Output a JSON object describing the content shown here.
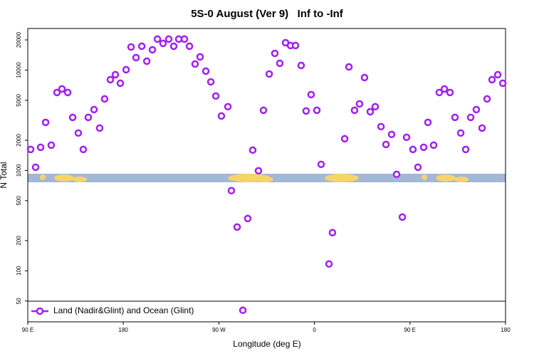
{
  "chart_data": {
    "type": "scatter",
    "title": "5S-0 August (Ver 9)   Inf to -Inf",
    "xlabel": "Longitude (deg E)",
    "ylabel": "N Total",
    "xlim": [
      90,
      540
    ],
    "xticks": [
      {
        "value": 90,
        "label": "90 E"
      },
      180,
      {
        "value": 270,
        "label": "90 W"
      },
      {
        "value": 360,
        "label": "0"
      },
      {
        "value": 450,
        "label": "90 E"
      },
      {
        "value": 540,
        "label": "180"
      }
    ],
    "ylim": [
      31,
      26000
    ],
    "yticks": [
      50,
      100,
      200,
      500,
      1000,
      2000,
      5000,
      10000,
      20000
    ],
    "log_y": true,
    "legend": "lower left",
    "series": [
      {
        "name": "Land (Nadir&Glint) and Ocean (Glint)",
        "color": "#a020f0",
        "x": [
          92.7,
          97.4,
          102.1,
          106.8,
          112.1,
          117.5,
          122.2,
          127.6,
          132.3,
          137.6,
          142.3,
          147.0,
          152.4,
          157.7,
          162.4,
          167.8,
          172.5,
          177.2,
          182.6,
          187.3,
          192.0,
          197.4,
          202.1,
          207.4,
          212.1,
          217.4,
          222.8,
          227.5,
          232.2,
          237.6,
          242.3,
          247.6,
          252.3,
          257.7,
          262.4,
          267.1,
          272.4,
          278.5,
          281.8,
          287.2,
          292.6,
          297.2,
          301.9,
          307.3,
          312.0,
          317.4,
          322.7,
          327.4,
          332.8,
          337.5,
          342.2,
          347.5,
          352.2,
          356.9,
          362.3,
          366.3,
          373.7,
          377.0,
          388.5,
          392.5,
          397.8,
          402.5,
          407.2,
          412.6,
          417.3,
          422.7,
          427.4,
          432.7,
          437.4,
          442.8,
          446.8,
          452.8,
          457.5,
          462.9,
          466.9,
          472.3,
          477.6,
          482.4,
          487.7,
          492.4,
          497.8,
          502.5,
          507.2,
          512.5,
          517.9,
          522.6,
          527.3,
          532.7,
          537.4
        ],
        "values": [
          1620,
          1077,
          1702,
          3013,
          1787,
          5985,
          6490,
          5985,
          3380,
          2360,
          1620,
          3380,
          4045,
          2645,
          5165,
          8030,
          9000,
          7400,
          10090,
          17000,
          13330,
          17300,
          12280,
          15950,
          20370,
          18470,
          20370,
          17300,
          20370,
          20370,
          17300,
          11500,
          13550,
          9770,
          7640,
          5520,
          3490,
          4320,
          629,
          273,
          40.4,
          332,
          1595,
          993,
          3980,
          9150,
          14690,
          11690,
          18760,
          17590,
          17590,
          11130,
          3915,
          5700,
          3980,
          1150,
          117,
          240,
          2070,
          10770,
          3980,
          4610,
          8430,
          3850,
          4320,
          2735,
          1816,
          2285,
          915,
          343,
          2140,
          1620,
          1077,
          1702,
          3013,
          1787,
          5985,
          6490,
          5985,
          3380,
          2360,
          1620,
          3380,
          4045,
          2645,
          5165,
          8030,
          9000,
          7400
        ]
      }
    ]
  }
}
